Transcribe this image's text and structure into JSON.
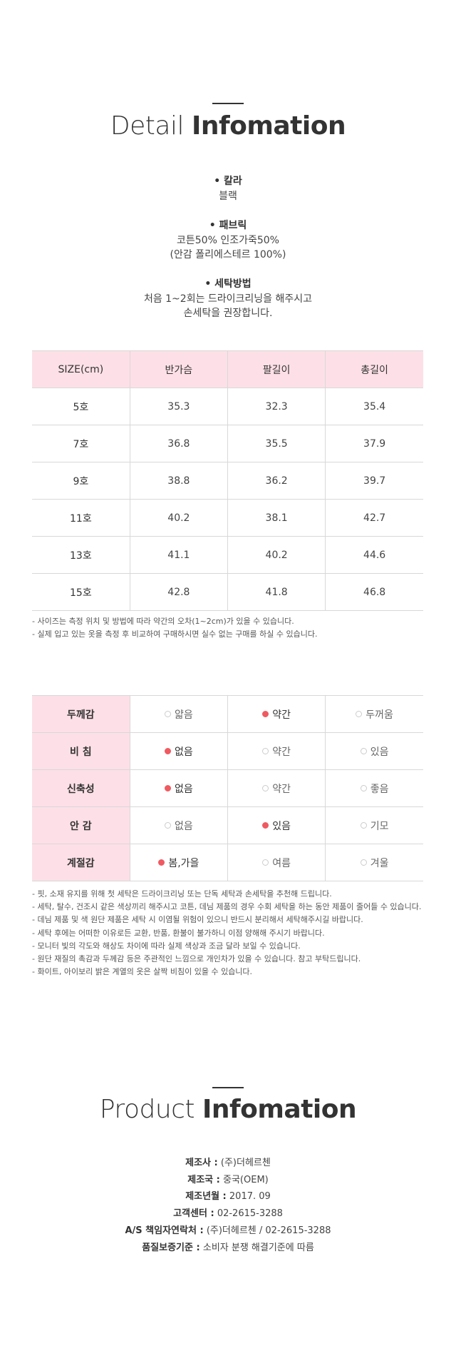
{
  "detail": {
    "title_light": "Detail",
    "title_bold": "Infomation",
    "sections": [
      {
        "heading": "칼라",
        "lines": [
          "블랙"
        ]
      },
      {
        "heading": "패브릭",
        "lines": [
          "코튼50% 인조가죽50%",
          "(안감 폴리에스테르 100%)"
        ]
      },
      {
        "heading": "세탁방법",
        "lines": [
          "처음 1~2회는 드라이크리닝을 해주시고",
          "손세탁을 권장합니다."
        ]
      }
    ]
  },
  "size_table": {
    "header": [
      "SIZE(cm)",
      "반가슴",
      "팔길이",
      "총길이"
    ],
    "rows": [
      [
        "5호",
        "35.3",
        "32.3",
        "35.4"
      ],
      [
        "7호",
        "36.8",
        "35.5",
        "37.9"
      ],
      [
        "9호",
        "38.8",
        "36.2",
        "39.7"
      ],
      [
        "11호",
        "40.2",
        "38.1",
        "42.7"
      ],
      [
        "13호",
        "41.1",
        "40.2",
        "44.6"
      ],
      [
        "15호",
        "42.8",
        "41.8",
        "46.8"
      ]
    ],
    "notes": [
      "- 사이즈는 측정 위치 및 방법에 따라 약간의 오차(1~2cm)가 있을 수 있습니다.",
      "- 실제 입고 있는 옷을 측정 후 비교하여 구매하시면 실수 없는 구매를 하실 수 있습니다."
    ]
  },
  "fit_table": {
    "rows": [
      {
        "label": "두께감",
        "options": [
          {
            "text": "얇음",
            "selected": false
          },
          {
            "text": "약간",
            "selected": true
          },
          {
            "text": "두꺼움",
            "selected": false
          }
        ]
      },
      {
        "label": "비 침",
        "options": [
          {
            "text": "없음",
            "selected": true
          },
          {
            "text": "약간",
            "selected": false
          },
          {
            "text": "있음",
            "selected": false
          }
        ]
      },
      {
        "label": "신축성",
        "options": [
          {
            "text": "없음",
            "selected": true
          },
          {
            "text": "약간",
            "selected": false
          },
          {
            "text": "좋음",
            "selected": false
          }
        ]
      },
      {
        "label": "안 감",
        "options": [
          {
            "text": "없음",
            "selected": false
          },
          {
            "text": "있음",
            "selected": true
          },
          {
            "text": "기모",
            "selected": false
          }
        ]
      },
      {
        "label": "계절감",
        "options": [
          {
            "text": "봄,가을",
            "selected": true
          },
          {
            "text": "여름",
            "selected": false
          },
          {
            "text": "겨울",
            "selected": false
          }
        ]
      }
    ],
    "notes": [
      "- 핏, 소재 유지를 위해 첫 세탁은 드라이크리닝 또는 단독 세탁과 손세탁을 추천해 드립니다.",
      "- 세탁, 탈수, 건조시 같은 색상끼리 해주시고 코튼, 데님 제품의 경우 수회 세탁을 하는 동안 제품이 줄어들 수 있습니다.",
      "- 데님 제품 및 색 원단 제품은 세탁 시 이염될 위험이 있으니 반드시 분리해서 세탁해주시길 바랍니다.",
      "- 세탁 후에는 어떠한 이유로든 교환, 반품, 환불이 불가하니 이점 양해해 주시기 바랍니다.",
      "- 모니터 빛의 각도와 해상도 차이에 따라 실제 색상과 조금 달라 보일 수 있습니다.",
      "- 원단 재질의 촉감과 두께감 등은 주관적인 느낌으로 개인차가 있을 수 있습니다. 참고 부탁드립니다.",
      "- 화이트, 아이보리 밝은 계열의 옷은 살짝 비침이 있을 수 있습니다."
    ]
  },
  "product": {
    "title_light": "Product",
    "title_bold": "Infomation",
    "items": [
      {
        "label": "제조사 :",
        "value": "(주)더헤르첸"
      },
      {
        "label": "제조국 :",
        "value": "중국(OEM)"
      },
      {
        "label": "제조년월 :",
        "value": "2017. 09"
      },
      {
        "label": "고객센터 :",
        "value": "02-2615-3288"
      },
      {
        "label": "A/S 책임자연락처 :",
        "value": "(주)더헤르첸 / 02-2615-3288"
      },
      {
        "label": "품질보증기준 :",
        "value": "소비자 분쟁 해결기준에 따름"
      }
    ]
  }
}
